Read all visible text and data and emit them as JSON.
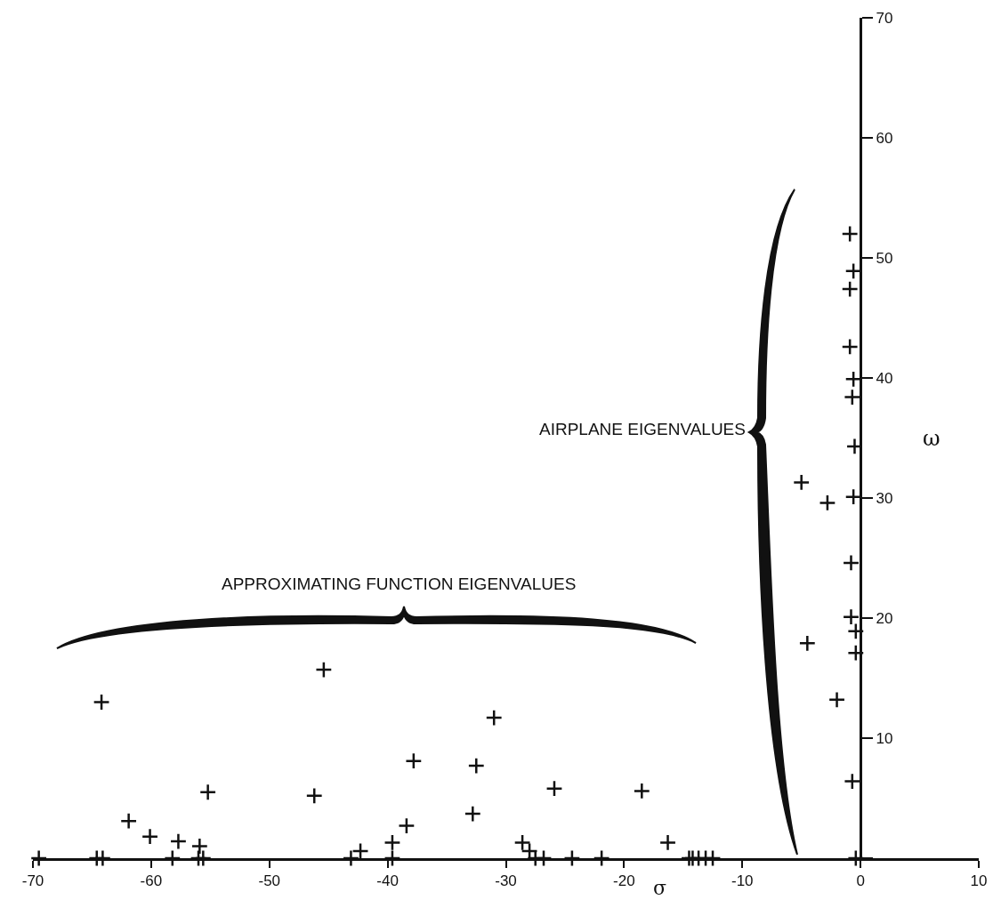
{
  "chart_data": {
    "type": "scatter",
    "xlabel": "σ",
    "ylabel": "ω",
    "annotations": [
      "AIRPLANE EIGENVALUES",
      "APPROXIMATING FUNCTION EIGENVALUES"
    ],
    "x": [
      -64.2,
      -45.4,
      -31.0,
      -37.8,
      -32.5,
      -55.2,
      -46.2,
      -25.9,
      -18.5,
      -61.9,
      -32.8,
      -38.4,
      -60.1,
      -57.7,
      -55.9,
      -39.6,
      -42.3,
      -28.6,
      -28.0,
      -16.3,
      -69.5,
      -64.6,
      -64.1,
      -58.2,
      -56.0,
      -55.6,
      -43.1,
      -39.6,
      -27.5,
      -26.8,
      -24.4,
      -21.9,
      -14.5,
      -14.2,
      -13.7,
      -13.1,
      -12.5,
      -4.5,
      -2.0,
      -0.8,
      -0.8,
      -0.4,
      -0.4,
      -0.7,
      -0.4,
      -0.9,
      -0.6,
      -0.9,
      -0.9,
      -0.6,
      -0.7,
      -0.5,
      -5.0,
      -2.8,
      -0.6
    ],
    "values": [
      13.0,
      15.7,
      11.7,
      8.1,
      7.7,
      5.5,
      5.2,
      5.8,
      5.6,
      3.1,
      3.7,
      2.7,
      1.8,
      1.4,
      1.0,
      1.3,
      0.6,
      1.3,
      0.6,
      1.3,
      0,
      0,
      0,
      0,
      0,
      0,
      0,
      0,
      0,
      0,
      0,
      0,
      0,
      0,
      0,
      0,
      0,
      17.9,
      13.2,
      24.6,
      20.1,
      18.9,
      17.1,
      6.4,
      0,
      52.0,
      48.9,
      47.4,
      42.6,
      39.9,
      38.4,
      34.3,
      31.3,
      29.6,
      30.1
    ],
    "color": "#111111",
    "marker": "cross",
    "xlim": [
      -70,
      10
    ],
    "xticks": [
      -70,
      -60,
      -50,
      -40,
      -30,
      -20,
      -10,
      0,
      10
    ],
    "ylim": [
      0,
      70
    ],
    "yticks": [
      {
        "value": 0,
        "label": null
      },
      10,
      20,
      30,
      40,
      50,
      60,
      70
    ],
    "grid": false,
    "legend": false
  }
}
